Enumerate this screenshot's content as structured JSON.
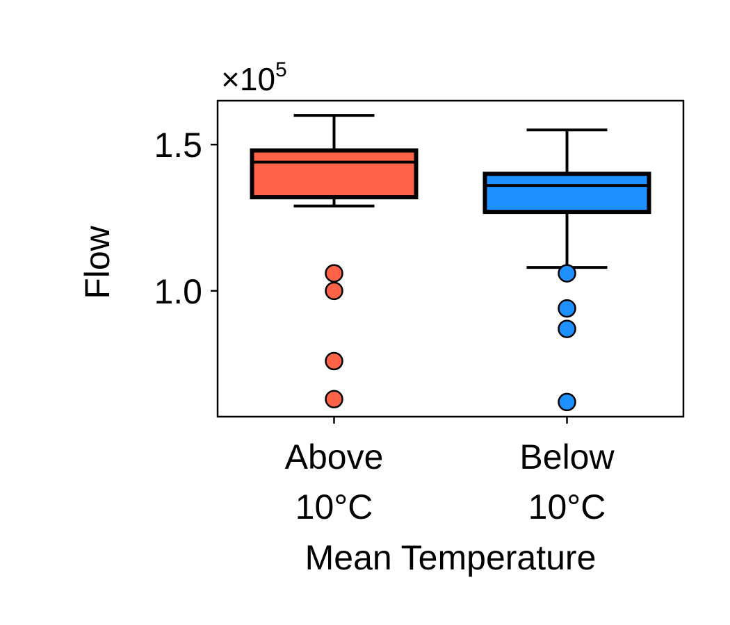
{
  "chart_data": {
    "type": "box",
    "xlabel": "Mean Temperature",
    "ylabel": "Flow",
    "y_multiplier": {
      "base": "×10",
      "exponent": "5"
    },
    "ylim": [
      0.57,
      1.65
    ],
    "yticks": [
      1.0,
      1.5
    ],
    "ytick_labels": [
      "1.0",
      "1.5"
    ],
    "grid": false,
    "legend": "none",
    "categories": [
      {
        "line1": "Above",
        "line2": "10°C"
      },
      {
        "line1": "Below",
        "line2": "10°C"
      }
    ],
    "boxes": [
      {
        "name": "Above 10°C",
        "color": "#ff6347",
        "whisker_low": 1.29,
        "q1": 1.32,
        "median": 1.44,
        "q3": 1.48,
        "whisker_high": 1.6,
        "outliers": [
          1.06,
          1.0,
          0.76,
          0.63
        ]
      },
      {
        "name": "Below 10°C",
        "color": "#1e90ff",
        "whisker_low": 1.08,
        "q1": 1.27,
        "median": 1.36,
        "q3": 1.4,
        "whisker_high": 1.55,
        "outliers": [
          1.06,
          0.94,
          0.87,
          0.62
        ]
      }
    ]
  }
}
